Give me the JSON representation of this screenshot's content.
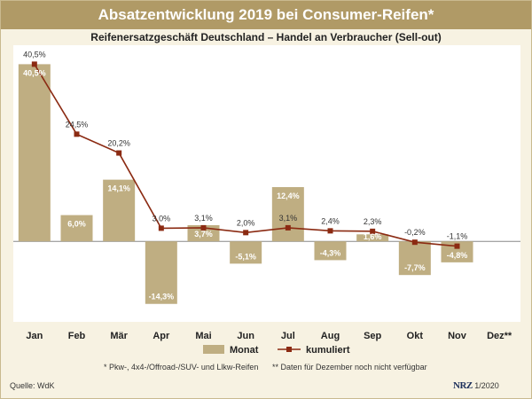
{
  "header": {
    "title": "Absatzentwicklung 2019 bei Consumer-Reifen*",
    "subtitle": "Reifenersatzgeschäft Deutschland – Handel an Verbraucher (Sell-out)"
  },
  "footer": {
    "note1": "* Pkw-, 4x4-/Offroad-/SUV- und Llkw-Reifen",
    "note2": "** Daten für Dezember noch nicht verfügbar",
    "source": "Quelle: WdK",
    "brand": "NRZ",
    "date": "1/2020"
  },
  "colors": {
    "bar": "#bfae82",
    "line": "#8b2a12",
    "background": "#f7f2e2",
    "title_bar": "#b09a66"
  },
  "chart_data": {
    "type": "bar",
    "categories": [
      "Jan",
      "Feb",
      "Mär",
      "Apr",
      "Mai",
      "Jun",
      "Jul",
      "Aug",
      "Sep",
      "Okt",
      "Nov",
      "Dez**"
    ],
    "series": [
      {
        "name": "Monat",
        "type": "bar",
        "values": [
          40.5,
          6.0,
          14.1,
          -14.3,
          3.7,
          -5.1,
          12.4,
          -4.3,
          1.6,
          -7.7,
          -4.8,
          null
        ],
        "labels": [
          "40,5%",
          "6,0%",
          "14,1%",
          "-14,3%",
          "3,7%",
          "-5,1%",
          "12,4%",
          "-4,3%",
          "1,6%",
          "-7,7%",
          "-4,8%",
          null
        ]
      },
      {
        "name": "kumuliert",
        "type": "line",
        "values": [
          40.5,
          24.5,
          20.2,
          3.0,
          3.1,
          2.0,
          3.1,
          2.4,
          2.3,
          -0.2,
          -1.1,
          null
        ],
        "labels": [
          "40,5%",
          "24,5%",
          "20,2%",
          "3,0%",
          "3,1%",
          "2,0%",
          "3,1%",
          "2,4%",
          "2,3%",
          "-0,2%",
          "-1,1%",
          null
        ]
      }
    ],
    "ylim": [
      -18,
      42
    ],
    "legend": [
      "Monat",
      "kumuliert"
    ]
  }
}
